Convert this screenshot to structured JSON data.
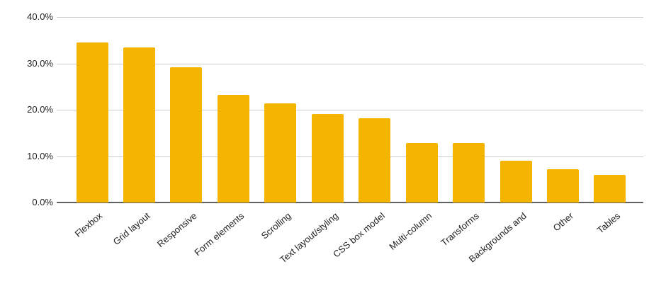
{
  "chart_data": {
    "type": "bar",
    "title": "",
    "xlabel": "",
    "ylabel": "",
    "unit": "%",
    "categories": [
      "Flexbox",
      "Grid layout",
      "Responsive",
      "Form elements",
      "Scrolling",
      "Text layout/styling",
      "CSS box model",
      "Multi-column",
      "Transforms",
      "Backgrounds and",
      "Other",
      "Tables"
    ],
    "values": [
      34.5,
      33.4,
      29.2,
      23.2,
      21.4,
      19.1,
      18.1,
      12.8,
      12.8,
      9.0,
      7.1,
      6.0
    ],
    "ylim": [
      0,
      40
    ],
    "yticks": [
      {
        "value": 0,
        "label": "0.0%"
      },
      {
        "value": 10,
        "label": "10.0%"
      },
      {
        "value": 20,
        "label": "20.0%"
      },
      {
        "value": 30,
        "label": "30.0%"
      },
      {
        "value": 40,
        "label": "40.0%"
      }
    ],
    "grid": true,
    "legend_position": "none",
    "colors": {
      "bar": "#F4B400",
      "gridline": "#CCCCCC",
      "baseline": "#616161",
      "text": "#222222",
      "background": "#FFFFFF"
    }
  }
}
